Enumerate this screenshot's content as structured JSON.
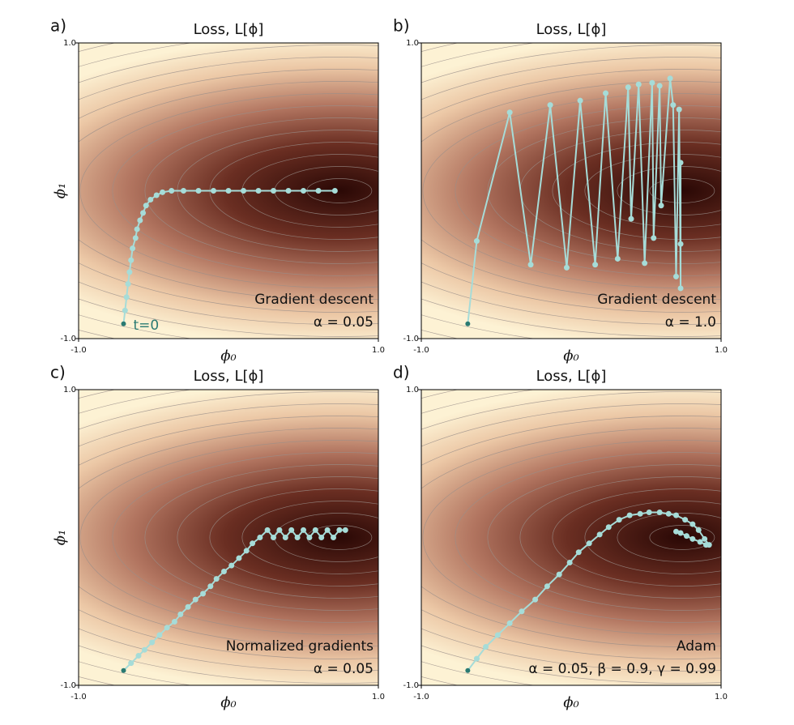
{
  "chart_data": [
    {
      "type": "line",
      "panel_label": "a)",
      "title": "Loss, L[ϕ]",
      "x_label": "ϕ₀",
      "y_label": "ϕ₁",
      "xlim": [
        -1,
        1
      ],
      "ylim": [
        -1,
        1
      ],
      "xticks": [
        {
          "value": -1,
          "label": "-1.0"
        },
        {
          "value": 1,
          "label": "1.0"
        }
      ],
      "yticks": [
        {
          "value": -1,
          "label": "-1.0"
        },
        {
          "value": 1,
          "label": "1.0"
        }
      ],
      "color": "#a6dcd8",
      "start_color": "#2a7a72",
      "x": [
        -0.7,
        -0.69,
        -0.68,
        -0.67,
        -0.66,
        -0.65,
        -0.64,
        -0.62,
        -0.61,
        -0.59,
        -0.57,
        -0.55,
        -0.52,
        -0.48,
        -0.44,
        -0.38,
        -0.3,
        -0.2,
        -0.1,
        0.0,
        0.1,
        0.2,
        0.3,
        0.4,
        0.5,
        0.6,
        0.71
      ],
      "values": [
        -0.9,
        -0.81,
        -0.72,
        -0.63,
        -0.55,
        -0.47,
        -0.39,
        -0.32,
        -0.26,
        -0.2,
        -0.15,
        -0.1,
        -0.06,
        -0.03,
        -0.01,
        0.0,
        0.0,
        0.0,
        0.0,
        0.0,
        0.0,
        0.0,
        0.0,
        0.0,
        0.0,
        0.0,
        0.0
      ],
      "start_label": "t=0",
      "annotations": [
        "Gradient descent",
        "α = 0.05"
      ]
    },
    {
      "type": "line",
      "panel_label": "b)",
      "title": "Loss, L[ϕ]",
      "x_label": "ϕ₀",
      "xlim": [
        -1,
        1
      ],
      "ylim": [
        -1,
        1
      ],
      "xticks": [
        {
          "value": -1,
          "label": "-1.0"
        },
        {
          "value": 1,
          "label": "1.0"
        }
      ],
      "yticks": [
        {
          "value": -1,
          "label": "-1.0"
        },
        {
          "value": 1,
          "label": "1.0"
        }
      ],
      "color": "#a6dcd8",
      "start_color": "#2a7a72",
      "x": [
        -0.69,
        -0.63,
        -0.41,
        -0.27,
        -0.14,
        -0.03,
        0.06,
        0.16,
        0.23,
        0.31,
        0.38,
        0.4,
        0.45,
        0.49,
        0.54,
        0.55,
        0.59,
        0.6,
        0.66,
        0.68,
        0.7,
        0.72,
        0.73,
        0.73,
        0.73
      ],
      "values": [
        -0.9,
        -0.34,
        0.53,
        -0.5,
        0.58,
        -0.52,
        0.61,
        -0.5,
        0.66,
        -0.46,
        0.7,
        -0.19,
        0.72,
        -0.49,
        0.73,
        -0.32,
        0.71,
        -0.1,
        0.76,
        0.58,
        -0.58,
        0.55,
        -0.66,
        0.19,
        -0.36
      ],
      "annotations": [
        "Gradient descent",
        "α = 1.0"
      ]
    },
    {
      "type": "line",
      "panel_label": "c)",
      "title": "Loss, L[ϕ]",
      "x_label": "ϕ₀",
      "y_label": "ϕ₁",
      "xlim": [
        -1,
        1
      ],
      "ylim": [
        -1,
        1
      ],
      "xticks": [
        {
          "value": -1,
          "label": "-1.0"
        },
        {
          "value": 1,
          "label": "1.0"
        }
      ],
      "yticks": [
        {
          "value": -1,
          "label": "-1.0"
        },
        {
          "value": 1,
          "label": "1.0"
        }
      ],
      "color": "#a6dcd8",
      "start_color": "#2a7a72",
      "x": [
        -0.7,
        -0.65,
        -0.6,
        -0.56,
        -0.51,
        -0.46,
        -0.41,
        -0.36,
        -0.32,
        -0.27,
        -0.22,
        -0.17,
        -0.12,
        -0.08,
        -0.03,
        0.02,
        0.07,
        0.12,
        0.16,
        0.21,
        0.26,
        0.3,
        0.34,
        0.38,
        0.42,
        0.46,
        0.5,
        0.54,
        0.58,
        0.62,
        0.66,
        0.7,
        0.74,
        0.78
      ],
      "values": [
        -0.9,
        -0.85,
        -0.8,
        -0.76,
        -0.71,
        -0.66,
        -0.61,
        -0.57,
        -0.52,
        -0.47,
        -0.42,
        -0.38,
        -0.33,
        -0.28,
        -0.23,
        -0.19,
        -0.14,
        -0.09,
        -0.04,
        0.0,
        0.05,
        0.0,
        0.05,
        0.0,
        0.05,
        0.0,
        0.05,
        0.0,
        0.05,
        0.0,
        0.05,
        0.0,
        0.05,
        0.05
      ],
      "annotations": [
        "Normalized gradients",
        "α = 0.05"
      ]
    },
    {
      "type": "line",
      "panel_label": "d)",
      "title": "Loss, L[ϕ]",
      "x_label": "ϕ₀",
      "xlim": [
        -1,
        1
      ],
      "ylim": [
        -1,
        1
      ],
      "xticks": [
        {
          "value": -1,
          "label": "-1.0"
        },
        {
          "value": 1,
          "label": "1.0"
        }
      ],
      "yticks": [
        {
          "value": -1,
          "label": "-1.0"
        },
        {
          "value": 1,
          "label": "1.0"
        }
      ],
      "color": "#a6dcd8",
      "start_color": "#2a7a72",
      "x": [
        -0.69,
        -0.63,
        -0.57,
        -0.49,
        -0.41,
        -0.33,
        -0.24,
        -0.16,
        -0.08,
        -0.01,
        0.05,
        0.12,
        0.19,
        0.25,
        0.32,
        0.39,
        0.46,
        0.52,
        0.59,
        0.65,
        0.7,
        0.76,
        0.81,
        0.85,
        0.89,
        0.92,
        0.9,
        0.86,
        0.81,
        0.77,
        0.73,
        0.7
      ],
      "values": [
        -0.9,
        -0.82,
        -0.74,
        -0.66,
        -0.58,
        -0.5,
        -0.42,
        -0.33,
        -0.25,
        -0.17,
        -0.1,
        -0.04,
        0.02,
        0.07,
        0.12,
        0.15,
        0.16,
        0.17,
        0.17,
        0.16,
        0.15,
        0.12,
        0.09,
        0.05,
        -0.01,
        -0.05,
        -0.05,
        -0.03,
        -0.01,
        0.01,
        0.03,
        0.04
      ],
      "annotations": [
        "Adam",
        "α = 0.05, β = 0.9, γ = 0.99"
      ]
    }
  ]
}
